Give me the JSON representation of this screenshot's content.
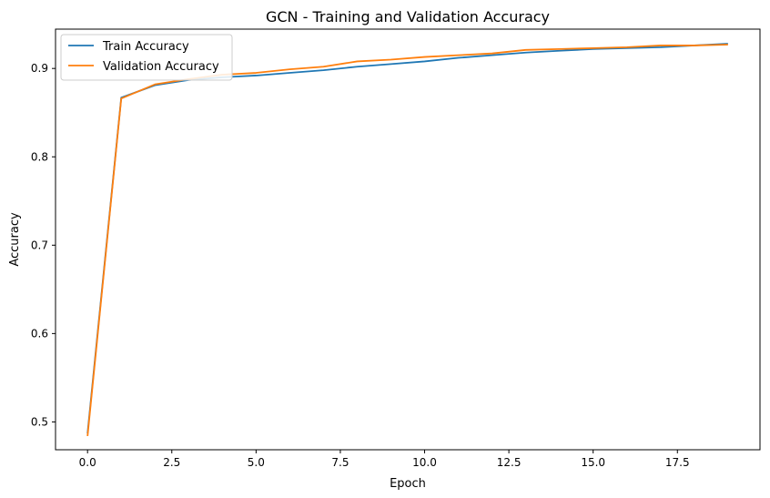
{
  "chart_data": {
    "type": "line",
    "title": "GCN - Training and Validation Accuracy",
    "xlabel": "Epoch",
    "ylabel": "Accuracy",
    "xlim": [
      -0.95,
      19.95
    ],
    "ylim": [
      0.4685,
      0.9445
    ],
    "xticks": [
      0.0,
      2.5,
      5.0,
      7.5,
      10.0,
      12.5,
      15.0,
      17.5
    ],
    "xtick_labels": [
      "0.0",
      "2.5",
      "5.0",
      "7.5",
      "10.0",
      "12.5",
      "15.0",
      "17.5"
    ],
    "yticks": [
      0.5,
      0.6,
      0.7,
      0.8,
      0.9
    ],
    "ytick_labels": [
      "0.5",
      "0.6",
      "0.7",
      "0.8",
      "0.9"
    ],
    "grid": false,
    "legend_position": "top-left",
    "x": [
      0,
      1,
      2,
      3,
      4,
      5,
      6,
      7,
      8,
      9,
      10,
      11,
      12,
      13,
      14,
      15,
      16,
      17,
      18,
      19
    ],
    "series": [
      {
        "name": "Train Accuracy",
        "color": "#1f77b4",
        "values": [
          0.487,
          0.867,
          0.881,
          0.887,
          0.89,
          0.892,
          0.895,
          0.898,
          0.902,
          0.905,
          0.908,
          0.912,
          0.915,
          0.918,
          0.92,
          0.922,
          0.923,
          0.924,
          0.926,
          0.928
        ]
      },
      {
        "name": "Validation Accuracy",
        "color": "#ff7f0e",
        "values": [
          0.484,
          0.866,
          0.882,
          0.888,
          0.893,
          0.895,
          0.899,
          0.902,
          0.908,
          0.91,
          0.913,
          0.915,
          0.917,
          0.921,
          0.922,
          0.923,
          0.924,
          0.926,
          0.926,
          0.927
        ]
      }
    ]
  }
}
